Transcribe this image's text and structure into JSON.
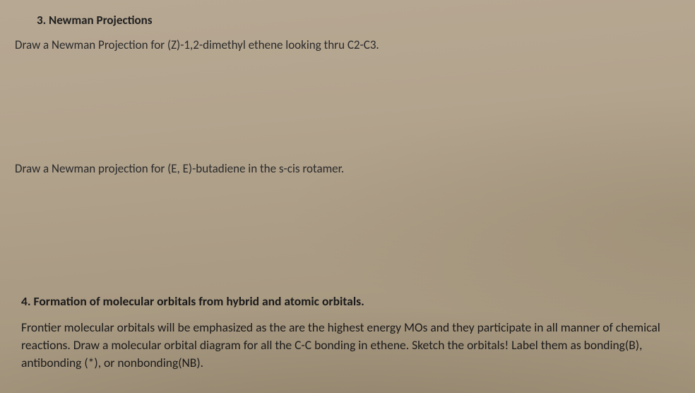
{
  "q3": {
    "heading": "3. Newman Projections",
    "prompt_a": "Draw a Newman Projection for (Z)-1,2-dimethyl ethene looking thru C2-C3.",
    "prompt_b": "Draw a Newman projection for (E, E)-butadiene in the s-cis rotamer."
  },
  "q4": {
    "heading": "4. Formation of molecular orbitals from hybrid and atomic orbitals.",
    "body": "Frontier molecular orbitals will be emphasized as the are the highest energy MOs and they participate in all manner of chemical reactions. Draw a molecular orbital diagram for all the C-C bonding in ethene. Sketch the orbitals! Label them as bonding(B), antibonding (*), or nonbonding(NB)."
  },
  "style": {
    "background_gradient_from": "#b7a893",
    "background_gradient_to": "#a3947c",
    "text_color": "#2a2a2a",
    "heading_color": "#1f1f1f",
    "font_family": "Calibri",
    "heading_fontsize_pt": 12,
    "body_fontsize_pt": 12
  }
}
